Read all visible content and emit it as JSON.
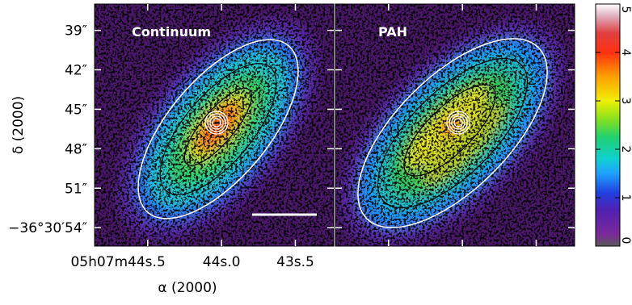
{
  "chart_data": {
    "type": "image",
    "panels": [
      "Continuum",
      "PAH"
    ],
    "xlabel": "α (2000)",
    "ylabel": "δ (2000)",
    "xlim": [
      44.86,
      43.24
    ],
    "xticks": [
      {
        "value": 44.5,
        "label": "05h07m44s.5"
      },
      {
        "value": 44.0,
        "label": "44s.0"
      },
      {
        "value": 43.5,
        "label": "43s.5"
      }
    ],
    "ylim": [
      37,
      55.4
    ],
    "yticks": [
      {
        "value": 39,
        "label": "39″"
      },
      {
        "value": 42,
        "label": "42″"
      },
      {
        "value": 45,
        "label": "45″"
      },
      {
        "value": 48,
        "label": "48″"
      },
      {
        "value": 51,
        "label": "51″"
      },
      {
        "value": 54,
        "label": "−36°30′54″"
      }
    ],
    "colorbar": {
      "lim": [
        0,
        5
      ],
      "ticks": [
        0,
        1,
        2,
        3,
        4,
        5
      ]
    }
  }
}
